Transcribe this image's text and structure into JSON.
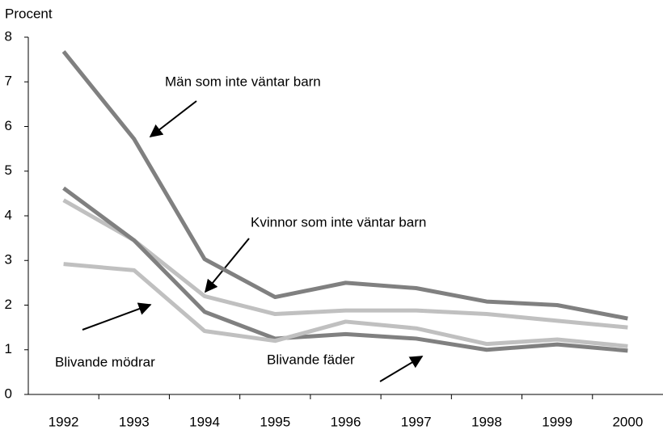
{
  "chart_data": {
    "type": "line",
    "y_axis_label": "Procent",
    "categories": [
      "1992",
      "1993",
      "1994",
      "1995",
      "1996",
      "1997",
      "1998",
      "1999",
      "2000"
    ],
    "series": [
      {
        "name": "Män som inte väntar barn",
        "color": "#808080",
        "values": [
          7.68,
          5.72,
          3.03,
          2.18,
          2.5,
          2.38,
          2.08,
          2.0,
          1.7
        ]
      },
      {
        "name": "Kvinnor som inte väntar barn",
        "color": "#c0c0c0",
        "values": [
          4.35,
          3.45,
          2.2,
          1.8,
          1.88,
          1.88,
          1.8,
          1.65,
          1.5
        ]
      },
      {
        "name": "Blivande fäder",
        "color": "#808080",
        "values": [
          4.62,
          3.45,
          1.85,
          1.25,
          1.35,
          1.25,
          1.0,
          1.12,
          0.98
        ]
      },
      {
        "name": "Blivande mödrar",
        "color": "#c0c0c0",
        "values": [
          2.92,
          2.78,
          1.42,
          1.2,
          1.63,
          1.48,
          1.13,
          1.23,
          1.08
        ]
      }
    ],
    "ylim": [
      0,
      8
    ],
    "yticks": [
      0,
      1,
      2,
      3,
      4,
      5,
      6,
      7,
      8
    ],
    "grid": false
  }
}
